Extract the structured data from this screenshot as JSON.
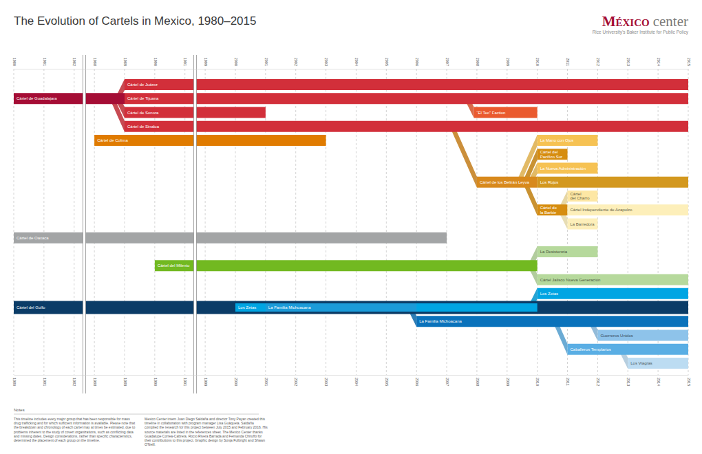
{
  "chart_data": {
    "type": "timeline",
    "title": "The Evolution of Cartels in Mexico, 1980–2015",
    "logo": [
      "México",
      "center"
    ],
    "logo_subtitle": "Rice University’s Baker Institute for Public Policy",
    "xlim": [
      1980,
      2015
    ],
    "xticks": [
      1980,
      1981,
      1982,
      1988,
      1989,
      1990,
      1991,
      1999,
      2000,
      2001,
      2002,
      2003,
      2004,
      2005,
      2006,
      2007,
      2008,
      2009,
      2010,
      2011,
      2012,
      2013,
      2014,
      2015
    ],
    "grid": true,
    "rows": [
      [
        {
          "name": "Cártel de Juárez",
          "start": 1989,
          "end": 2015,
          "color": "#d22f3a",
          "parent": "Cártel de Guadalajara"
        }
      ],
      [
        {
          "name": "Cártel de Guadalajara",
          "start": 1980,
          "end": 1989,
          "color": "#a50d35"
        },
        {
          "name": "Cártel de Tijuana",
          "start": 1989,
          "end": 2015,
          "color": "#d22f3a"
        }
      ],
      [
        {
          "name": "Cártel de Sonora",
          "start": 1989,
          "end": 2001,
          "color": "#d22f3a",
          "parent": "Cártel de Guadalajara"
        },
        {
          "name": "“El Teo” Faction",
          "start": 2007.9,
          "end": 2010,
          "color": "#ea5a2e",
          "parent": "Cártel de Tijuana"
        }
      ],
      [
        {
          "name": "Cártel de Sinaloa",
          "start": 1989,
          "end": 2015,
          "color": "#d22f3a",
          "parent": "Cártel de Guadalajara"
        }
      ],
      [
        {
          "name": "Cártel de Colima",
          "start": 1988,
          "end": 2003,
          "color": "#e07b00"
        },
        {
          "name": "La Mano con Ojos",
          "start": 2010,
          "end": 2012,
          "color": "#f6c253",
          "parent": "Cártel de los Beltrán Leyva"
        }
      ],
      [
        {
          "name": "Cártel del Pacífico Sur",
          "start": 2010,
          "end": 2011,
          "color": "#d68d10",
          "parent": "Cártel de los Beltrán Leyva"
        }
      ],
      [
        {
          "name": "La Nueva Administración",
          "start": 2010,
          "end": 2012,
          "color": "#f6c253",
          "parent": "Cártel de los Beltrán Leyva"
        }
      ],
      [
        {
          "name": "Cártel de los Beltrán Leyva",
          "start": 2008,
          "end": 2010,
          "color": "#d8891c",
          "parent": "Cártel de Sinaloa"
        },
        {
          "name": "Los Rojos",
          "start": 2010,
          "end": 2015,
          "color": "#d3981f"
        }
      ],
      [
        {
          "name": "Cártel del Charro",
          "start": 2011,
          "end": 2012,
          "color": "#fde7a4",
          "parent": "Cártel de la Barbie"
        }
      ],
      [
        {
          "name": "Cártel de la Barbie",
          "start": 2010,
          "end": 2011,
          "color": "#d68d10",
          "parent": "Cártel de los Beltrán Leyva"
        },
        {
          "name": "Cártel Independiente de Acapulco",
          "start": 2011,
          "end": 2015,
          "color": "#fdefba"
        }
      ],
      [
        {
          "name": "La Barredora",
          "start": 2011,
          "end": 2012,
          "color": "#fdefba",
          "parent": "Cártel de la Barbie"
        }
      ],
      [
        {
          "name": "Cártel de Oaxaca",
          "start": 1980,
          "end": 2007,
          "color": "#a3a5a6"
        }
      ],
      [
        {
          "name": "La Resistencia",
          "start": 2010,
          "end": 2012,
          "color": "#b6d99c",
          "parent": "Cártel del Milenio"
        }
      ],
      [
        {
          "name": "Cártel del Milenio",
          "start": 1990,
          "end": 2010,
          "color": "#72b921"
        }
      ],
      [
        {
          "name": "Cártel Jalisco Nueva Generación",
          "start": 2010,
          "end": 2015,
          "color": "#b6d99c",
          "parent": "Cártel del Milenio"
        }
      ],
      [
        {
          "name": "Los Zetas",
          "start": 2010,
          "end": 2015,
          "color": "#00a5e3",
          "parent": "Los Zetas"
        }
      ],
      [
        {
          "name": "Cártel del Golfo",
          "start": 1980,
          "end": 2015,
          "color": "#0b3c67"
        },
        {
          "name": "Los Zetas",
          "start": 2000,
          "end": 2010,
          "color": "#00a5e3"
        },
        {
          "name": "La Familia Michoacana",
          "start": 2001,
          "end": 2006,
          "color": "#1b9bd9"
        }
      ],
      [
        {
          "name": "La Familia Michoacana",
          "start": 2006,
          "end": 2015,
          "color": "#0a72bb",
          "parent": "La Familia Michoacana"
        }
      ],
      [
        {
          "name": "Guerreros Unidos",
          "start": 2012,
          "end": 2015,
          "color": "#8ec3ea",
          "parent": "La Familia Michoacana"
        }
      ],
      [
        {
          "name": "Caballeros Templarios",
          "start": 2011,
          "end": 2015,
          "color": "#5aaee4",
          "parent": "La Familia Michoacana"
        }
      ],
      [
        {
          "name": "Los Viagras",
          "start": 2013,
          "end": 2015,
          "color": "#bcdcf2",
          "parent": "Caballeros Templarios"
        }
      ]
    ],
    "notes_title": "Notes",
    "notes": [
      "This timeline includes every major group that has been responsible for mass drug trafficking and for which sufficient information is available. Please note that the breakdown and chronology of each cartel may at times be estimated, due to problems inherent to the study of covert organizations, such as conflicting data and missing dates. Design considerations, rather than specific characteristics, determined the placement of each group on the timeline.",
      "Mexico Center intern Juan Diego Saldaña and director Tony Payan created this timeline in collaboration with program manager Lisa Guáqueta. Saldaña compiled the research for this project between July 2015 and February 2016. His source materials are listed in the references sheet. The Mexico Center thanks Guadalupe Correa-Cabrera, Rocío Rivera Barrada and Fernanda Chiruffo for their contributions to this project. Graphic design by Sonja Fulbright and Shawn O'Neill."
    ]
  }
}
